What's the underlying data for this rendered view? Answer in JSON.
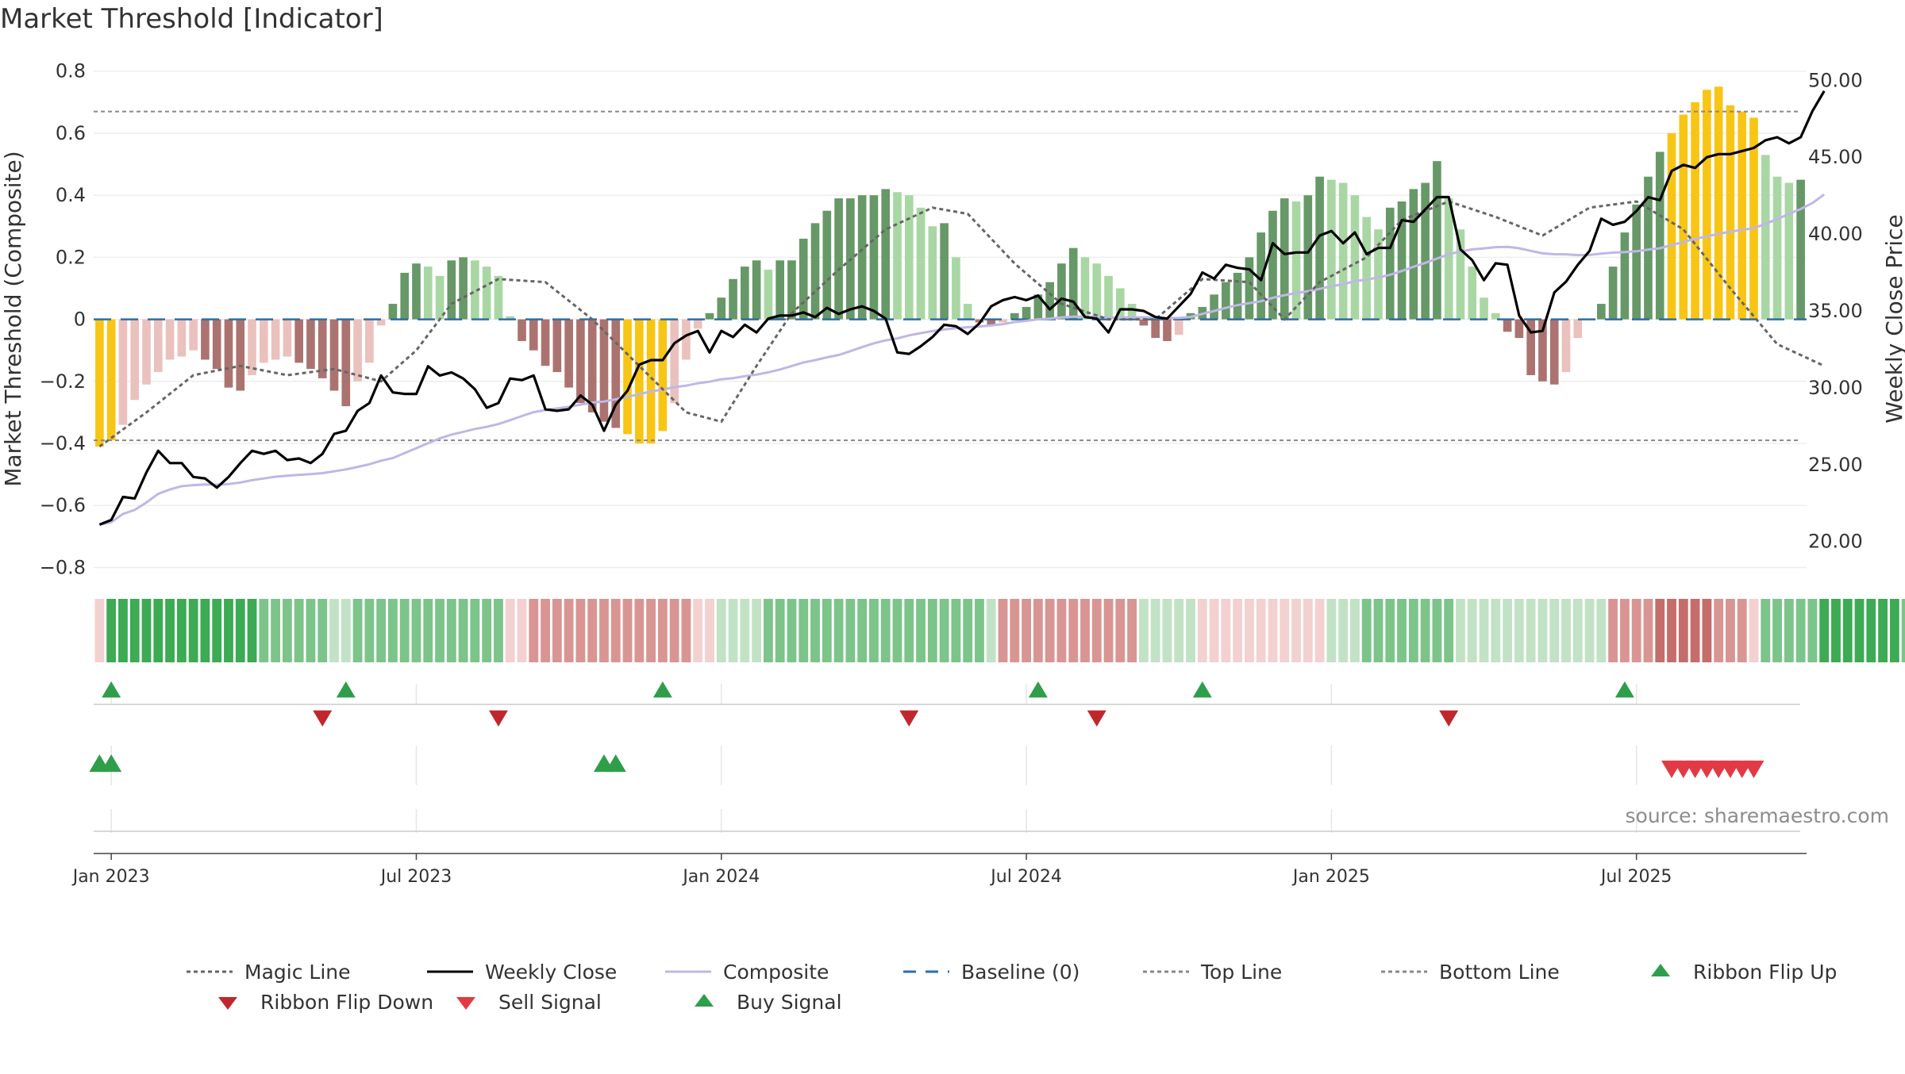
{
  "title": "Market Threshold [Indicator]",
  "source": "source: sharemaestro.com",
  "chart_data": {
    "type": "bar",
    "title": "Market Threshold [Indicator]",
    "ylabel_left": "Market Threshold (Composite)",
    "ylabel_right": "Weekly Close Price",
    "ylim_left": [
      -0.85,
      0.83
    ],
    "ylim_right": [
      17.3,
      51.2
    ],
    "yticks_left": [
      "0.8",
      "0.6",
      "0.4",
      "0.2",
      "0",
      "−0.2",
      "−0.4",
      "−0.6",
      "−0.8"
    ],
    "yticks_left_values": [
      0.8,
      0.6,
      0.4,
      0.2,
      0,
      -0.2,
      -0.4,
      -0.6,
      -0.8
    ],
    "yticks_right": [
      "50.00",
      "45.00",
      "40.00",
      "35.00",
      "30.00",
      "25.00",
      "20.00"
    ],
    "yticks_right_values": [
      50,
      45,
      40,
      35,
      30,
      25,
      20
    ],
    "x_start": "2022-12-26",
    "x_step_weeks": 1,
    "xticks": [
      "Jan 2023",
      "Jul 2023",
      "Jan 2024",
      "Jul 2024",
      "Jan 2025",
      "Jul 2025"
    ],
    "xticks_weeks": [
      1,
      27,
      53,
      79,
      105,
      131
    ],
    "top_line": 0.67,
    "bottom_line": -0.39,
    "baseline": 0,
    "composite": [
      -0.41,
      -0.39,
      -0.34,
      -0.26,
      -0.21,
      -0.17,
      -0.13,
      -0.12,
      -0.1,
      -0.13,
      -0.16,
      -0.22,
      -0.23,
      -0.18,
      -0.14,
      -0.13,
      -0.12,
      -0.14,
      -0.16,
      -0.19,
      -0.23,
      -0.28,
      -0.2,
      -0.14,
      -0.02,
      0.05,
      0.15,
      0.18,
      0.17,
      0.14,
      0.19,
      0.2,
      0.19,
      0.17,
      0.14,
      0.01,
      -0.07,
      -0.1,
      -0.15,
      -0.17,
      -0.22,
      -0.27,
      -0.3,
      -0.33,
      -0.35,
      -0.37,
      -0.4,
      -0.4,
      -0.36,
      -0.27,
      -0.13,
      -0.03,
      0.02,
      0.07,
      0.13,
      0.17,
      0.19,
      0.16,
      0.19,
      0.19,
      0.26,
      0.31,
      0.35,
      0.39,
      0.39,
      0.4,
      0.4,
      0.42,
      0.41,
      0.4,
      0.36,
      0.3,
      0.31,
      0.2,
      0.05,
      -0.01,
      -0.02,
      -0.01,
      0.02,
      0.04,
      0.08,
      0.12,
      0.18,
      0.23,
      0.2,
      0.18,
      0.14,
      0.1,
      0.05,
      -0.02,
      -0.06,
      -0.07,
      -0.05,
      0.02,
      0.04,
      0.08,
      0.12,
      0.15,
      0.2,
      0.28,
      0.35,
      0.39,
      0.38,
      0.4,
      0.46,
      0.45,
      0.44,
      0.4,
      0.33,
      0.29,
      0.36,
      0.38,
      0.42,
      0.44,
      0.51,
      0.39,
      0.29,
      0.17,
      0.07,
      0.02,
      -0.04,
      -0.06,
      -0.18,
      -0.2,
      -0.21,
      -0.17,
      -0.06,
      0.0,
      0.05,
      0.17,
      0.28,
      0.37,
      0.46,
      0.54,
      0.6,
      0.66,
      0.7,
      0.74,
      0.75,
      0.69,
      0.67,
      0.65,
      0.53,
      0.46,
      0.44,
      0.45
    ],
    "ribbon_level": [
      -1,
      3,
      3,
      3,
      3,
      3,
      3,
      3,
      3,
      3,
      3,
      3,
      3,
      3,
      2,
      2,
      2,
      2,
      2,
      2,
      1,
      1,
      2,
      2,
      2,
      2,
      2,
      2,
      2,
      2,
      2,
      2,
      2,
      2,
      2,
      -1,
      -1,
      -2,
      -2,
      -2,
      -2,
      -2,
      -2,
      -2,
      -2,
      -2,
      -2,
      -2,
      -2,
      -2,
      -2,
      -1,
      -1,
      1,
      1,
      1,
      1,
      2,
      2,
      2,
      2,
      2,
      2,
      2,
      2,
      2,
      2,
      2,
      2,
      2,
      2,
      2,
      2,
      2,
      2,
      2,
      1,
      -2,
      -2,
      -2,
      -2,
      -2,
      -2,
      -2,
      -2,
      -2,
      -2,
      -2,
      -2,
      1,
      1,
      1,
      1,
      1,
      -1,
      -1,
      -1,
      -1,
      -1,
      -1,
      -1,
      -1,
      -1,
      -1,
      -1,
      1,
      1,
      1,
      2,
      2,
      2,
      2,
      2,
      2,
      2,
      2,
      1,
      1,
      1,
      1,
      1,
      1,
      1,
      1,
      1,
      1,
      1,
      1,
      1,
      -2,
      -2,
      -2,
      -2,
      -3,
      -3,
      -3,
      -3,
      -3,
      -2,
      -2,
      -2,
      -1,
      2,
      2,
      2,
      2,
      2,
      3,
      3,
      3,
      3,
      3,
      3,
      3,
      2,
      2,
      2,
      2,
      2,
      1
    ],
    "weekly_close": [
      {
        "w": 0,
        "v": 21.1
      },
      {
        "w": 1,
        "v": 21.4
      },
      {
        "w": 2,
        "v": 22.9
      },
      {
        "w": 3,
        "v": 22.8
      },
      {
        "w": 4,
        "v": 24.5
      },
      {
        "w": 5,
        "v": 25.9
      },
      {
        "w": 6,
        "v": 25.1
      },
      {
        "w": 7,
        "v": 25.1
      },
      {
        "w": 8,
        "v": 24.2
      },
      {
        "w": 9,
        "v": 24.1
      },
      {
        "w": 10,
        "v": 23.5
      },
      {
        "w": 11,
        "v": 24.2
      },
      {
        "w": 12,
        "v": 25.1
      },
      {
        "w": 13,
        "v": 25.9
      },
      {
        "w": 14,
        "v": 25.7
      },
      {
        "w": 15,
        "v": 25.9
      },
      {
        "w": 16,
        "v": 25.3
      },
      {
        "w": 17,
        "v": 25.4
      },
      {
        "w": 18,
        "v": 25.1
      },
      {
        "w": 19,
        "v": 25.7
      },
      {
        "w": 20,
        "v": 27.0
      },
      {
        "w": 21,
        "v": 27.2
      },
      {
        "w": 22,
        "v": 28.5
      },
      {
        "w": 23,
        "v": 29.0
      },
      {
        "w": 24,
        "v": 30.8
      },
      {
        "w": 25,
        "v": 29.7
      },
      {
        "w": 26,
        "v": 29.6
      },
      {
        "w": 27,
        "v": 29.6
      },
      {
        "w": 28,
        "v": 31.4
      },
      {
        "w": 29,
        "v": 30.8
      },
      {
        "w": 30,
        "v": 31.0
      },
      {
        "w": 31,
        "v": 30.6
      },
      {
        "w": 32,
        "v": 29.9
      },
      {
        "w": 33,
        "v": 28.7
      },
      {
        "w": 34,
        "v": 29.0
      },
      {
        "w": 35,
        "v": 30.6
      },
      {
        "w": 36,
        "v": 30.5
      },
      {
        "w": 37,
        "v": 30.8
      },
      {
        "w": 38,
        "v": 28.6
      },
      {
        "w": 39,
        "v": 28.5
      },
      {
        "w": 40,
        "v": 28.6
      },
      {
        "w": 41,
        "v": 29.5
      },
      {
        "w": 42,
        "v": 28.9
      },
      {
        "w": 43,
        "v": 27.2
      },
      {
        "w": 44,
        "v": 28.9
      },
      {
        "w": 45,
        "v": 29.8
      },
      {
        "w": 46,
        "v": 31.5
      },
      {
        "w": 47,
        "v": 31.8
      },
      {
        "w": 48,
        "v": 31.8
      },
      {
        "w": 49,
        "v": 32.9
      },
      {
        "w": 50,
        "v": 33.4
      },
      {
        "w": 51,
        "v": 33.7
      },
      {
        "w": 52,
        "v": 32.3
      },
      {
        "w": 53,
        "v": 33.7
      },
      {
        "w": 54,
        "v": 33.3
      },
      {
        "w": 55,
        "v": 34.1
      },
      {
        "w": 56,
        "v": 33.6
      },
      {
        "w": 57,
        "v": 34.5
      },
      {
        "w": 58,
        "v": 34.7
      },
      {
        "w": 59,
        "v": 34.7
      },
      {
        "w": 60,
        "v": 34.9
      },
      {
        "w": 61,
        "v": 34.6
      },
      {
        "w": 62,
        "v": 35.2
      },
      {
        "w": 63,
        "v": 34.8
      },
      {
        "w": 64,
        "v": 35.1
      },
      {
        "w": 65,
        "v": 35.3
      },
      {
        "w": 66,
        "v": 35.0
      },
      {
        "w": 67,
        "v": 34.5
      },
      {
        "w": 68,
        "v": 32.3
      },
      {
        "w": 69,
        "v": 32.2
      },
      {
        "w": 70,
        "v": 32.7
      },
      {
        "w": 71,
        "v": 33.3
      },
      {
        "w": 72,
        "v": 34.1
      },
      {
        "w": 73,
        "v": 34.0
      },
      {
        "w": 74,
        "v": 33.5
      },
      {
        "w": 75,
        "v": 34.2
      },
      {
        "w": 76,
        "v": 35.3
      },
      {
        "w": 77,
        "v": 35.7
      },
      {
        "w": 78,
        "v": 35.9
      },
      {
        "w": 79,
        "v": 35.7
      },
      {
        "w": 80,
        "v": 36.0
      },
      {
        "w": 81,
        "v": 35.1
      },
      {
        "w": 82,
        "v": 35.8
      },
      {
        "w": 83,
        "v": 35.6
      },
      {
        "w": 84,
        "v": 34.6
      },
      {
        "w": 85,
        "v": 34.5
      },
      {
        "w": 86,
        "v": 33.6
      },
      {
        "w": 87,
        "v": 35.1
      },
      {
        "w": 88,
        "v": 35.1
      },
      {
        "w": 89,
        "v": 35.0
      },
      {
        "w": 90,
        "v": 34.6
      },
      {
        "w": 91,
        "v": 34.5
      },
      {
        "w": 92,
        "v": 35.3
      },
      {
        "w": 93,
        "v": 36.1
      },
      {
        "w": 94,
        "v": 37.5
      },
      {
        "w": 95,
        "v": 37.1
      },
      {
        "w": 96,
        "v": 38.0
      },
      {
        "w": 97,
        "v": 37.8
      },
      {
        "w": 98,
        "v": 37.7
      },
      {
        "w": 99,
        "v": 37.0
      },
      {
        "w": 100,
        "v": 39.4
      },
      {
        "w": 101,
        "v": 38.7
      },
      {
        "w": 102,
        "v": 38.8
      },
      {
        "w": 103,
        "v": 38.8
      },
      {
        "w": 104,
        "v": 39.9
      },
      {
        "w": 105,
        "v": 40.2
      },
      {
        "w": 106,
        "v": 39.4
      },
      {
        "w": 107,
        "v": 40.1
      },
      {
        "w": 108,
        "v": 38.7
      },
      {
        "w": 109,
        "v": 39.1
      },
      {
        "w": 110,
        "v": 39.1
      },
      {
        "w": 111,
        "v": 40.9
      },
      {
        "w": 112,
        "v": 40.8
      },
      {
        "w": 113,
        "v": 41.6
      },
      {
        "w": 114,
        "v": 42.4
      },
      {
        "w": 115,
        "v": 42.4
      },
      {
        "w": 116,
        "v": 39.0
      },
      {
        "w": 117,
        "v": 38.3
      },
      {
        "w": 118,
        "v": 37.0
      },
      {
        "w": 119,
        "v": 38.1
      },
      {
        "w": 120,
        "v": 38.0
      },
      {
        "w": 121,
        "v": 34.7
      },
      {
        "w": 122,
        "v": 33.6
      },
      {
        "w": 123,
        "v": 33.7
      },
      {
        "w": 124,
        "v": 36.2
      },
      {
        "w": 125,
        "v": 36.9
      },
      {
        "w": 126,
        "v": 38.0
      },
      {
        "w": 127,
        "v": 38.9
      },
      {
        "w": 128,
        "v": 41.0
      },
      {
        "w": 129,
        "v": 40.6
      },
      {
        "w": 130,
        "v": 40.8
      },
      {
        "w": 131,
        "v": 41.5
      },
      {
        "w": 132,
        "v": 42.4
      },
      {
        "w": 133,
        "v": 42.2
      },
      {
        "w": 134,
        "v": 44.1
      },
      {
        "w": 135,
        "v": 44.5
      },
      {
        "w": 136,
        "v": 44.3
      },
      {
        "w": 137,
        "v": 45.0
      },
      {
        "w": 138,
        "v": 45.2
      },
      {
        "w": 139,
        "v": 45.2
      },
      {
        "w": 140,
        "v": 45.4
      },
      {
        "w": 141,
        "v": 45.6
      },
      {
        "w": 142,
        "v": 46.1
      },
      {
        "w": 143,
        "v": 46.3
      },
      {
        "w": 144,
        "v": 45.9
      },
      {
        "w": 145,
        "v": 46.3
      },
      {
        "w": 146,
        "v": 48.0
      },
      {
        "w": 147,
        "v": 49.3
      }
    ],
    "magic_line": [
      {
        "w": 0,
        "v": -0.41
      },
      {
        "w": 4,
        "v": -0.3
      },
      {
        "w": 8,
        "v": -0.18
      },
      {
        "w": 12,
        "v": -0.15
      },
      {
        "w": 16,
        "v": -0.18
      },
      {
        "w": 20,
        "v": -0.16
      },
      {
        "w": 24,
        "v": -0.2
      },
      {
        "w": 27,
        "v": -0.1
      },
      {
        "w": 30,
        "v": 0.05
      },
      {
        "w": 34,
        "v": 0.13
      },
      {
        "w": 38,
        "v": 0.12
      },
      {
        "w": 42,
        "v": 0.0
      },
      {
        "w": 46,
        "v": -0.15
      },
      {
        "w": 50,
        "v": -0.3
      },
      {
        "w": 53,
        "v": -0.33
      },
      {
        "w": 56,
        "v": -0.15
      },
      {
        "w": 59,
        "v": 0.02
      },
      {
        "w": 63,
        "v": 0.16
      },
      {
        "w": 67,
        "v": 0.29
      },
      {
        "w": 71,
        "v": 0.36
      },
      {
        "w": 74,
        "v": 0.34
      },
      {
        "w": 78,
        "v": 0.18
      },
      {
        "w": 82,
        "v": 0.05
      },
      {
        "w": 86,
        "v": 0.0
      },
      {
        "w": 90,
        "v": 0.0
      },
      {
        "w": 94,
        "v": 0.13
      },
      {
        "w": 98,
        "v": 0.12
      },
      {
        "w": 101,
        "v": 0.0
      },
      {
        "w": 104,
        "v": 0.12
      },
      {
        "w": 108,
        "v": 0.2
      },
      {
        "w": 111,
        "v": 0.32
      },
      {
        "w": 115,
        "v": 0.38
      },
      {
        "w": 119,
        "v": 0.33
      },
      {
        "w": 123,
        "v": 0.27
      },
      {
        "w": 127,
        "v": 0.36
      },
      {
        "w": 131,
        "v": 0.38
      },
      {
        "w": 135,
        "v": 0.29
      },
      {
        "w": 139,
        "v": 0.1
      },
      {
        "w": 143,
        "v": -0.08
      },
      {
        "w": 147,
        "v": -0.15
      }
    ],
    "ribbon_flip_up_weeks": [
      0,
      1,
      43,
      44
    ],
    "ribbon_flip_down_weeks": [
      134,
      135,
      136,
      137,
      138,
      139,
      140,
      141
    ],
    "buy_signal_weeks": [
      1,
      21,
      48,
      80,
      94,
      130
    ],
    "sell_signal_weeks": [
      19,
      34,
      69,
      85,
      115
    ],
    "legend": [
      {
        "label": "Magic Line",
        "kind": "dotted",
        "color": "#666666"
      },
      {
        "label": "Weekly Close",
        "kind": "line",
        "color": "#000000"
      },
      {
        "label": "Composite",
        "kind": "line",
        "color": "#bfb7e6"
      },
      {
        "label": "Baseline (0)",
        "kind": "dashed",
        "color": "#2d6fa3"
      },
      {
        "label": "Top Line",
        "kind": "dotted",
        "color": "#888888"
      },
      {
        "label": "Bottom Line",
        "kind": "dotted",
        "color": "#888888"
      },
      {
        "label": "Ribbon Flip Up",
        "kind": "tri-up",
        "color": "#2e9e4a"
      },
      {
        "label": "Ribbon Flip Down",
        "kind": "tri-down",
        "color": "#c0272d"
      },
      {
        "label": "Sell Signal",
        "kind": "tri-down",
        "color": "#e23a45"
      },
      {
        "label": "Buy Signal",
        "kind": "tri-up",
        "color": "#2e9e4a"
      }
    ],
    "colors": {
      "bar_dark_green": "#679867",
      "bar_light_green": "#a9d7a4",
      "bar_dark_red": "#ab7370",
      "bar_light_red": "#eac1bd",
      "bar_yellow": "#f8c514",
      "grid": "#eeeeee",
      "ribbon_green_3": "#3daa54",
      "ribbon_green_2": "#7cc48a",
      "ribbon_green_1": "#c2e2c5",
      "ribbon_red_1": "#f2d1d0",
      "ribbon_red_2": "#d99593",
      "ribbon_red_3": "#c56d6b"
    }
  }
}
